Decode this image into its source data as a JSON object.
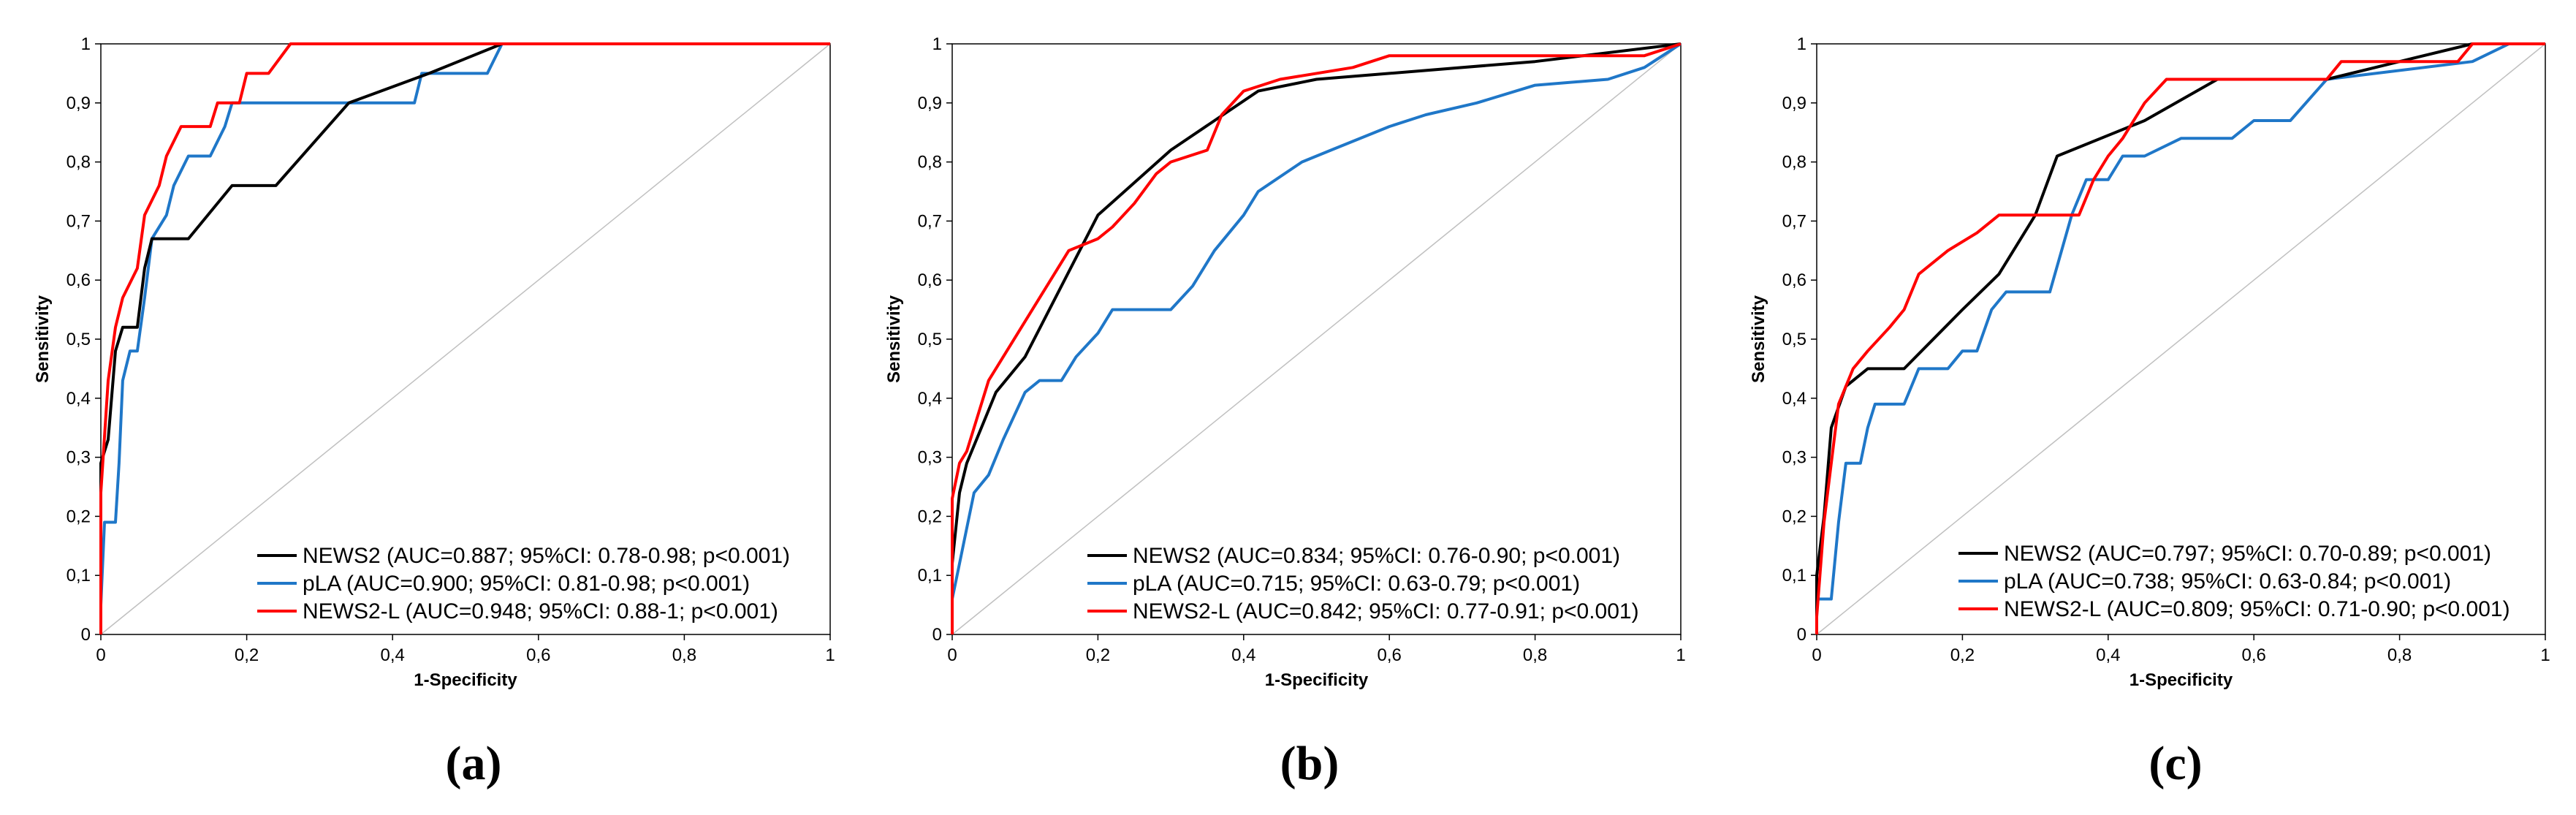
{
  "figure": {
    "series_colors": {
      "NEWS2": "#000000",
      "pLA": "#1f77c8",
      "NEWS2-L": "#ff0000"
    },
    "reference_line_color": "#c0c0c0"
  },
  "chart_data": [
    {
      "type": "line",
      "panel_label": "(a)",
      "xlabel": "1-Specificity",
      "ylabel": "Sensitivity",
      "xlim": [
        0,
        1
      ],
      "ylim": [
        0,
        1
      ],
      "x_ticks": [
        "0",
        "0,2",
        "0,4",
        "0,6",
        "0,8",
        "1"
      ],
      "y_ticks": [
        "0",
        "0,1",
        "0,2",
        "0,3",
        "0,4",
        "0,5",
        "0,6",
        "0,7",
        "0,8",
        "0,9",
        "1"
      ],
      "legend_position": "bottom-right",
      "series": [
        {
          "name": "NEWS2",
          "legend": "NEWS2 (AUC=0.887; 95%CI: 0.78-0.98; p<0.001)",
          "points": [
            [
              0,
              0
            ],
            [
              0,
              0.29
            ],
            [
              0.01,
              0.33
            ],
            [
              0.02,
              0.48
            ],
            [
              0.03,
              0.52
            ],
            [
              0.05,
              0.52
            ],
            [
              0.06,
              0.62
            ],
            [
              0.07,
              0.67
            ],
            [
              0.12,
              0.67
            ],
            [
              0.18,
              0.76
            ],
            [
              0.24,
              0.76
            ],
            [
              0.34,
              0.9
            ],
            [
              0.45,
              0.95
            ],
            [
              0.55,
              1
            ],
            [
              1,
              1
            ]
          ]
        },
        {
          "name": "pLA",
          "legend": "pLA (AUC=0.900; 95%CI: 0.81-0.98; p<0.001)",
          "points": [
            [
              0,
              0
            ],
            [
              0,
              0.05
            ],
            [
              0.005,
              0.19
            ],
            [
              0.02,
              0.19
            ],
            [
              0.025,
              0.29
            ],
            [
              0.03,
              0.43
            ],
            [
              0.04,
              0.48
            ],
            [
              0.05,
              0.48
            ],
            [
              0.06,
              0.57
            ],
            [
              0.07,
              0.67
            ],
            [
              0.09,
              0.71
            ],
            [
              0.1,
              0.76
            ],
            [
              0.12,
              0.81
            ],
            [
              0.15,
              0.81
            ],
            [
              0.17,
              0.86
            ],
            [
              0.18,
              0.9
            ],
            [
              0.43,
              0.9
            ],
            [
              0.44,
              0.95
            ],
            [
              0.53,
              0.95
            ],
            [
              0.55,
              1
            ],
            [
              1,
              1
            ]
          ]
        },
        {
          "name": "NEWS2-L",
          "legend": "NEWS2-L (AUC=0.948; 95%CI: 0.88-1; p<0.001)",
          "points": [
            [
              0,
              0
            ],
            [
              0,
              0.24
            ],
            [
              0.01,
              0.43
            ],
            [
              0.02,
              0.52
            ],
            [
              0.03,
              0.57
            ],
            [
              0.05,
              0.62
            ],
            [
              0.06,
              0.71
            ],
            [
              0.08,
              0.76
            ],
            [
              0.09,
              0.81
            ],
            [
              0.11,
              0.86
            ],
            [
              0.15,
              0.86
            ],
            [
              0.16,
              0.9
            ],
            [
              0.19,
              0.9
            ],
            [
              0.2,
              0.95
            ],
            [
              0.23,
              0.95
            ],
            [
              0.26,
              1
            ],
            [
              1,
              1
            ]
          ]
        }
      ]
    },
    {
      "type": "line",
      "panel_label": "(b)",
      "xlabel": "1-Specificity",
      "ylabel": "Sensitivity",
      "xlim": [
        0,
        1
      ],
      "ylim": [
        0,
        1
      ],
      "x_ticks": [
        "0",
        "0,2",
        "0,4",
        "0,6",
        "0,8",
        "1"
      ],
      "y_ticks": [
        "0",
        "0,1",
        "0,2",
        "0,3",
        "0,4",
        "0,5",
        "0,6",
        "0,7",
        "0,8",
        "0,9",
        "1"
      ],
      "legend_position": "bottom-right",
      "series": [
        {
          "name": "NEWS2",
          "legend": "NEWS2 (AUC=0.834; 95%CI: 0.76-0.90; p<0.001)",
          "points": [
            [
              0,
              0
            ],
            [
              0,
              0.12
            ],
            [
              0.01,
              0.24
            ],
            [
              0.02,
              0.29
            ],
            [
              0.04,
              0.35
            ],
            [
              0.06,
              0.41
            ],
            [
              0.1,
              0.47
            ],
            [
              0.15,
              0.59
            ],
            [
              0.2,
              0.71
            ],
            [
              0.3,
              0.82
            ],
            [
              0.42,
              0.92
            ],
            [
              0.5,
              0.94
            ],
            [
              0.6,
              0.95
            ],
            [
              0.8,
              0.97
            ],
            [
              1,
              1
            ]
          ]
        },
        {
          "name": "pLA",
          "legend": "pLA (AUC=0.715; 95%CI: 0.63-0.79; p<0.001)",
          "points": [
            [
              0,
              0
            ],
            [
              0,
              0.06
            ],
            [
              0.01,
              0.12
            ],
            [
              0.02,
              0.18
            ],
            [
              0.03,
              0.24
            ],
            [
              0.05,
              0.27
            ],
            [
              0.07,
              0.33
            ],
            [
              0.1,
              0.41
            ],
            [
              0.12,
              0.43
            ],
            [
              0.15,
              0.43
            ],
            [
              0.17,
              0.47
            ],
            [
              0.2,
              0.51
            ],
            [
              0.22,
              0.55
            ],
            [
              0.3,
              0.55
            ],
            [
              0.33,
              0.59
            ],
            [
              0.36,
              0.65
            ],
            [
              0.4,
              0.71
            ],
            [
              0.42,
              0.75
            ],
            [
              0.48,
              0.8
            ],
            [
              0.52,
              0.82
            ],
            [
              0.6,
              0.86
            ],
            [
              0.65,
              0.88
            ],
            [
              0.72,
              0.9
            ],
            [
              0.8,
              0.93
            ],
            [
              0.9,
              0.94
            ],
            [
              0.95,
              0.96
            ],
            [
              1,
              1
            ]
          ]
        },
        {
          "name": "NEWS2-L",
          "legend": "NEWS2-L (AUC=0.842; 95%CI: 0.77-0.91; p<0.001)",
          "points": [
            [
              0,
              0
            ],
            [
              0,
              0.23
            ],
            [
              0.01,
              0.29
            ],
            [
              0.02,
              0.31
            ],
            [
              0.03,
              0.35
            ],
            [
              0.05,
              0.43
            ],
            [
              0.07,
              0.47
            ],
            [
              0.09,
              0.51
            ],
            [
              0.12,
              0.57
            ],
            [
              0.14,
              0.61
            ],
            [
              0.16,
              0.65
            ],
            [
              0.2,
              0.67
            ],
            [
              0.22,
              0.69
            ],
            [
              0.25,
              0.73
            ],
            [
              0.28,
              0.78
            ],
            [
              0.3,
              0.8
            ],
            [
              0.35,
              0.82
            ],
            [
              0.37,
              0.88
            ],
            [
              0.4,
              0.92
            ],
            [
              0.45,
              0.94
            ],
            [
              0.55,
              0.96
            ],
            [
              0.6,
              0.98
            ],
            [
              0.95,
              0.98
            ],
            [
              1,
              1
            ]
          ]
        }
      ]
    },
    {
      "type": "line",
      "panel_label": "(c)",
      "xlabel": "1-Specificity",
      "ylabel": "Sensitivity",
      "xlim": [
        0,
        1
      ],
      "ylim": [
        0,
        1
      ],
      "x_ticks": [
        "0",
        "0,2",
        "0,4",
        "0,6",
        "0,8",
        "1"
      ],
      "y_ticks": [
        "0",
        "0,1",
        "0,2",
        "0,3",
        "0,4",
        "0,5",
        "0,6",
        "0,7",
        "0,8",
        "0,9",
        "1"
      ],
      "legend_position": "bottom-right",
      "series": [
        {
          "name": "NEWS2",
          "legend": "NEWS2 (AUC=0.797; 95%CI: 0.70-0.89; p<0.001)",
          "points": [
            [
              0,
              0
            ],
            [
              0,
              0.1
            ],
            [
              0.01,
              0.2
            ],
            [
              0.02,
              0.35
            ],
            [
              0.04,
              0.42
            ],
            [
              0.07,
              0.45
            ],
            [
              0.12,
              0.45
            ],
            [
              0.2,
              0.55
            ],
            [
              0.25,
              0.61
            ],
            [
              0.3,
              0.71
            ],
            [
              0.33,
              0.81
            ],
            [
              0.45,
              0.87
            ],
            [
              0.55,
              0.94
            ],
            [
              0.7,
              0.94
            ],
            [
              0.8,
              0.97
            ],
            [
              0.9,
              1
            ],
            [
              1,
              1
            ]
          ]
        },
        {
          "name": "pLA",
          "legend": "pLA (AUC=0.738; 95%CI: 0.63-0.84; p<0.001)",
          "points": [
            [
              0,
              0
            ],
            [
              0,
              0.06
            ],
            [
              0.02,
              0.06
            ],
            [
              0.03,
              0.19
            ],
            [
              0.04,
              0.29
            ],
            [
              0.06,
              0.29
            ],
            [
              0.07,
              0.35
            ],
            [
              0.08,
              0.39
            ],
            [
              0.12,
              0.39
            ],
            [
              0.14,
              0.45
            ],
            [
              0.18,
              0.45
            ],
            [
              0.2,
              0.48
            ],
            [
              0.22,
              0.48
            ],
            [
              0.24,
              0.55
            ],
            [
              0.26,
              0.58
            ],
            [
              0.32,
              0.58
            ],
            [
              0.35,
              0.71
            ],
            [
              0.37,
              0.77
            ],
            [
              0.4,
              0.77
            ],
            [
              0.42,
              0.81
            ],
            [
              0.45,
              0.81
            ],
            [
              0.5,
              0.84
            ],
            [
              0.57,
              0.84
            ],
            [
              0.6,
              0.87
            ],
            [
              0.65,
              0.87
            ],
            [
              0.7,
              0.94
            ],
            [
              0.9,
              0.97
            ],
            [
              0.95,
              1
            ],
            [
              1,
              1
            ]
          ]
        },
        {
          "name": "NEWS2-L",
          "legend": "NEWS2-L (AUC=0.809; 95%CI: 0.71-0.90; p<0.001)",
          "points": [
            [
              0,
              0
            ],
            [
              0,
              0.03
            ],
            [
              0.01,
              0.19
            ],
            [
              0.02,
              0.29
            ],
            [
              0.03,
              0.39
            ],
            [
              0.05,
              0.45
            ],
            [
              0.07,
              0.48
            ],
            [
              0.1,
              0.52
            ],
            [
              0.12,
              0.55
            ],
            [
              0.14,
              0.61
            ],
            [
              0.18,
              0.65
            ],
            [
              0.22,
              0.68
            ],
            [
              0.25,
              0.71
            ],
            [
              0.3,
              0.71
            ],
            [
              0.36,
              0.71
            ],
            [
              0.38,
              0.77
            ],
            [
              0.4,
              0.81
            ],
            [
              0.42,
              0.84
            ],
            [
              0.45,
              0.9
            ],
            [
              0.48,
              0.94
            ],
            [
              0.7,
              0.94
            ],
            [
              0.72,
              0.97
            ],
            [
              0.88,
              0.97
            ],
            [
              0.9,
              1
            ],
            [
              1,
              1
            ]
          ]
        }
      ]
    }
  ]
}
